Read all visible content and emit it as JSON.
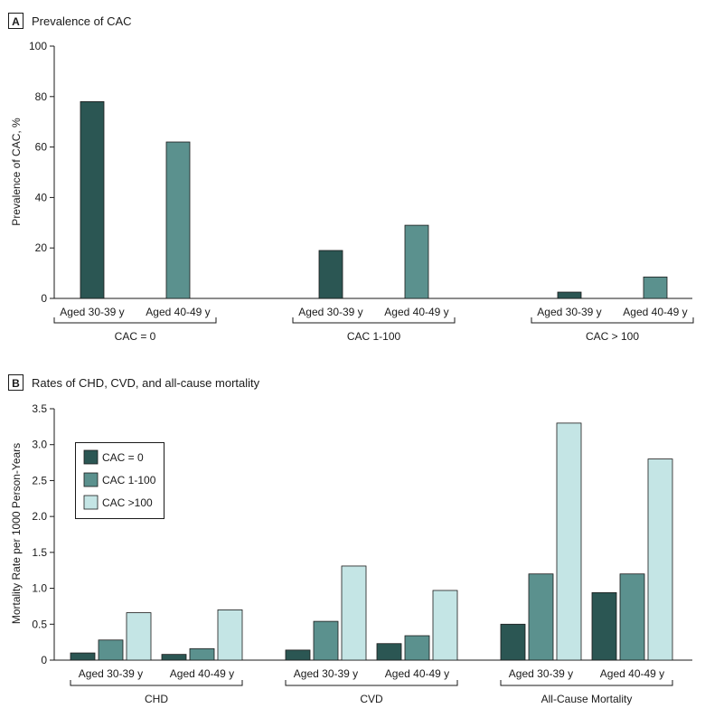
{
  "colors": {
    "dark": "#2b5653",
    "mid": "#5b918e",
    "light": "#c4e5e5"
  },
  "panel_a": {
    "letter": "A",
    "title": "Prevalence of CAC"
  },
  "panel_b": {
    "letter": "B",
    "title": "Rates of CHD, CVD, and all-cause mortality"
  },
  "chart_data": [
    {
      "type": "bar",
      "title": "Prevalence of CAC",
      "ylabel": "Prevalence of CAC, %",
      "ylim": [
        0,
        100
      ],
      "yticks": [
        "0",
        "20",
        "40",
        "60",
        "80",
        "100"
      ],
      "groups": [
        {
          "label": "CAC = 0",
          "categories": [
            "Aged 30-39 y",
            "Aged 40-49 y"
          ],
          "values": [
            78,
            62
          ]
        },
        {
          "label": "CAC 1-100",
          "categories": [
            "Aged 30-39 y",
            "Aged 40-49 y"
          ],
          "values": [
            19,
            29
          ]
        },
        {
          "label": "CAC > 100",
          "categories": [
            "Aged 30-39 y",
            "Aged 40-49 y"
          ],
          "values": [
            2.5,
            8.5
          ]
        }
      ],
      "grid": false
    },
    {
      "type": "bar",
      "title": "Rates of CHD, CVD, and all-cause mortality",
      "ylabel": "Mortality Rate per 1000 Person-Years",
      "ylim": [
        0,
        3.5
      ],
      "yticks": [
        "0",
        "0.5",
        "1.0",
        "1.5",
        "2.0",
        "2.5",
        "3.0",
        "3.5"
      ],
      "legend_position": "top-left",
      "series": [
        {
          "name": "CAC = 0"
        },
        {
          "name": "CAC 1-100"
        },
        {
          "name": "CAC >100"
        }
      ],
      "groups": [
        {
          "label": "CHD",
          "subgroups": [
            {
              "label": "Aged 30-39 y",
              "values": [
                0.1,
                0.28,
                0.66
              ]
            },
            {
              "label": "Aged 40-49 y",
              "values": [
                0.08,
                0.16,
                0.7
              ]
            }
          ]
        },
        {
          "label": "CVD",
          "subgroups": [
            {
              "label": "Aged 30-39 y",
              "values": [
                0.14,
                0.54,
                1.31
              ]
            },
            {
              "label": "Aged 40-49 y",
              "values": [
                0.23,
                0.34,
                0.97
              ]
            }
          ]
        },
        {
          "label": "All-Cause Mortality",
          "subgroups": [
            {
              "label": "Aged 30-39 y",
              "values": [
                0.5,
                1.2,
                3.3
              ]
            },
            {
              "label": "Aged 40-49 y",
              "values": [
                0.94,
                1.2,
                2.8
              ]
            }
          ]
        }
      ],
      "grid": false
    }
  ]
}
